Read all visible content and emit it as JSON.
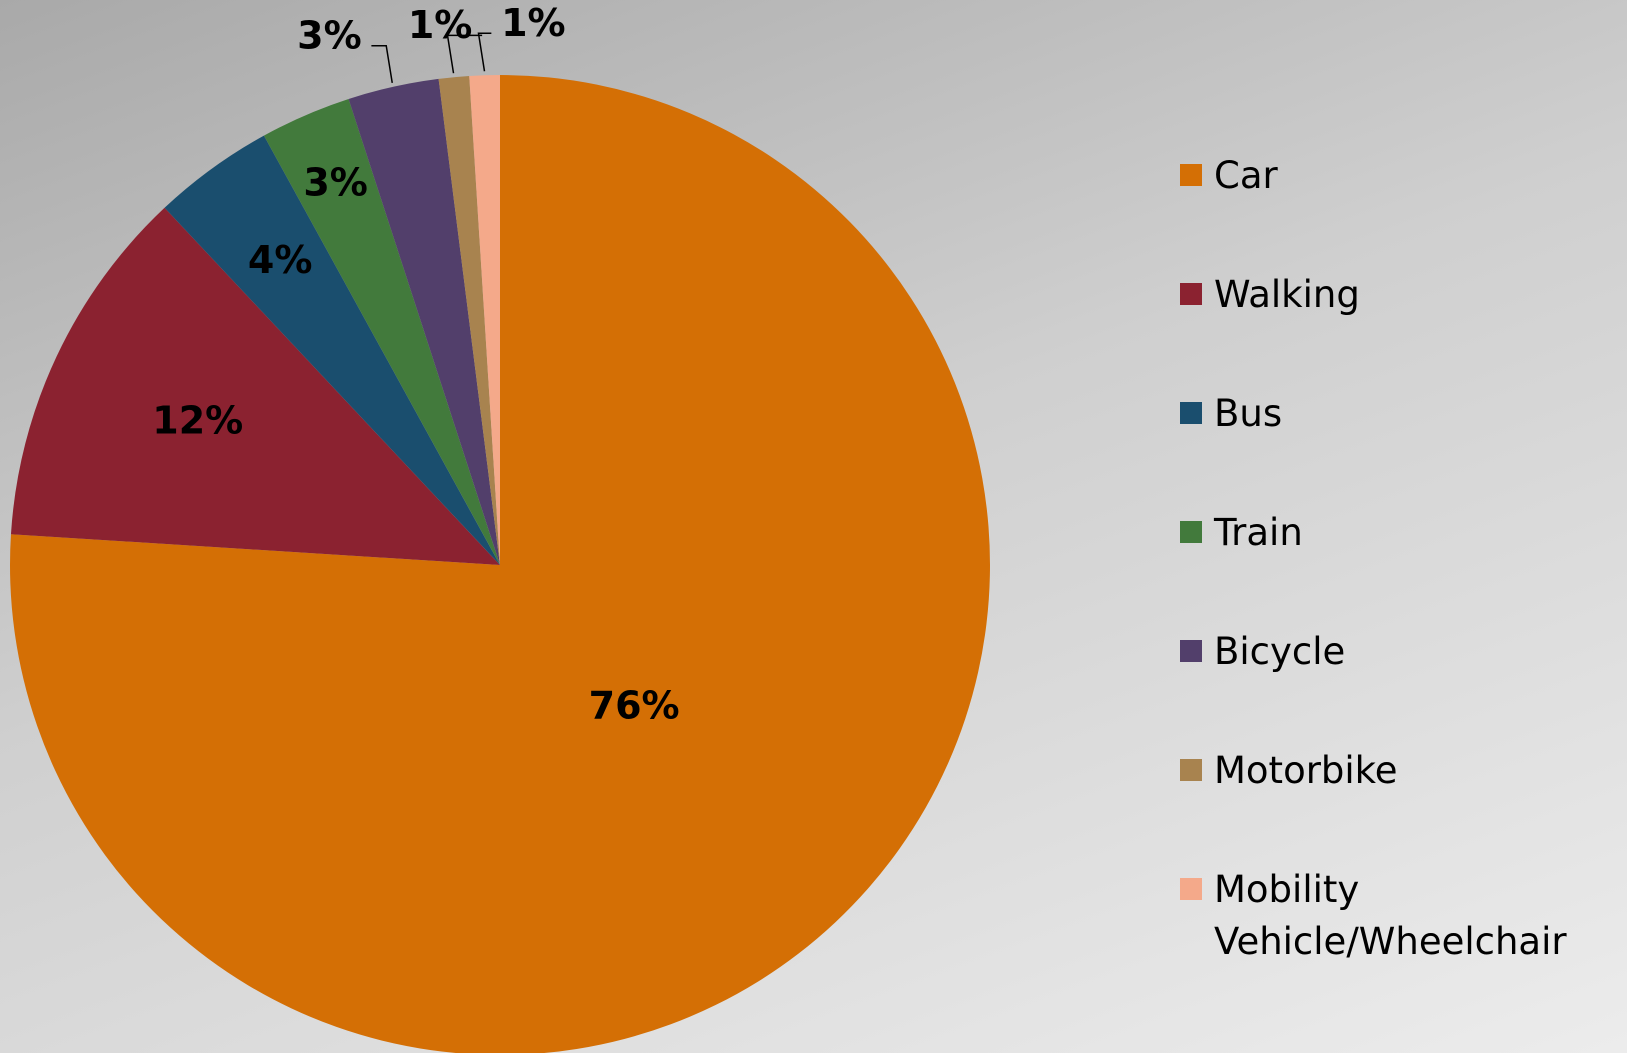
{
  "chart_data": {
    "type": "pie",
    "categories": [
      "Car",
      "Walking",
      "Bus",
      "Train",
      "Bicycle",
      "Motorbike",
      "Mobility Vehicle/Wheelchair"
    ],
    "values": [
      76,
      12,
      4,
      3,
      3,
      1,
      1
    ],
    "value_labels": [
      "76%",
      "12%",
      "4%",
      "3%",
      "3%",
      "1%",
      "1%"
    ],
    "colors": [
      "#d46f05",
      "#8b2230",
      "#1a4e6e",
      "#427a3c",
      "#523f6b",
      "#a8834f",
      "#f4a98a"
    ],
    "legend": "right"
  }
}
